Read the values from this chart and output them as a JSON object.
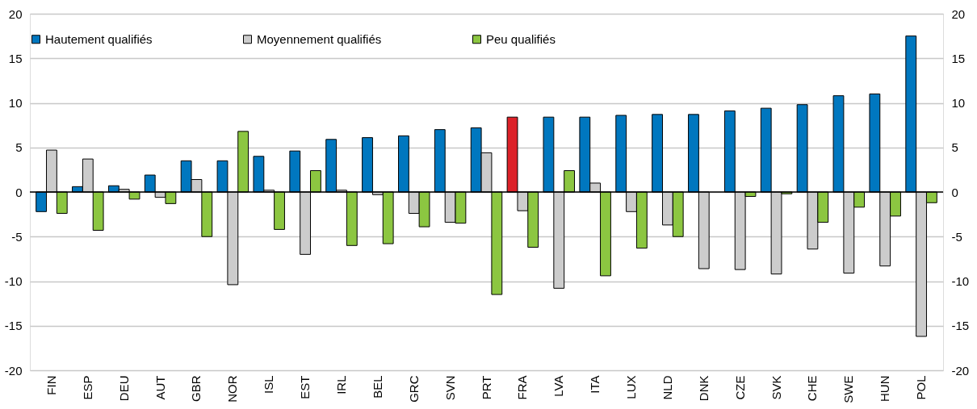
{
  "chart_data": {
    "type": "bar",
    "categories": [
      "FIN",
      "ESP",
      "DEU",
      "AUT",
      "GBR",
      "NOR",
      "ISL",
      "EST",
      "IRL",
      "BEL",
      "GRC",
      "SVN",
      "PRT",
      "FRA",
      "LVA",
      "ITA",
      "LUX",
      "NLD",
      "DNK",
      "CZE",
      "SVK",
      "CHE",
      "SWE",
      "HUN",
      "POL"
    ],
    "series": [
      {
        "name": "Hautement qualifiés",
        "color": "#0077bf",
        "colors": [
          "#0077bf",
          "#0077bf",
          "#0077bf",
          "#0077bf",
          "#0077bf",
          "#0077bf",
          "#0077bf",
          "#0077bf",
          "#0077bf",
          "#0077bf",
          "#0077bf",
          "#0077bf",
          "#0077bf",
          "#dc2128",
          "#0077bf",
          "#0077bf",
          "#0077bf",
          "#0077bf",
          "#0077bf",
          "#0077bf",
          "#0077bf",
          "#0077bf",
          "#0077bf",
          "#0077bf",
          "#0077bf"
        ],
        "values": [
          -2.2,
          0.6,
          0.7,
          1.9,
          3.5,
          3.5,
          4.0,
          4.6,
          5.9,
          6.1,
          6.3,
          7.0,
          7.2,
          8.4,
          8.4,
          8.4,
          8.6,
          8.7,
          8.7,
          9.1,
          9.4,
          9.8,
          10.8,
          11.0,
          17.5
        ]
      },
      {
        "name": "Moyennement qualifiés",
        "color": "#cccccc",
        "values": [
          4.7,
          3.7,
          0.3,
          -0.6,
          1.4,
          -10.4,
          0.2,
          -7.0,
          0.2,
          -0.3,
          -2.4,
          -3.4,
          4.4,
          -2.1,
          -10.8,
          1.0,
          -2.2,
          -3.7,
          -8.6,
          -8.7,
          -9.2,
          -6.4,
          -9.1,
          -8.3,
          -16.2
        ]
      },
      {
        "name": "Peu qualifiés",
        "color": "#8cc641",
        "values": [
          -2.4,
          -4.3,
          -0.8,
          -1.3,
          -5.0,
          6.8,
          -4.2,
          2.4,
          -6.0,
          -5.8,
          -3.9,
          -3.5,
          -11.5,
          -6.2,
          2.4,
          -9.4,
          -6.3,
          -5.0,
          null,
          -0.5,
          -0.2,
          -3.4,
          -1.7,
          -2.7,
          -1.2
        ]
      }
    ],
    "ylim": [
      -20,
      20
    ],
    "yticks": [
      -20,
      -15,
      -10,
      -5,
      0,
      5,
      10,
      15,
      20
    ],
    "y2lim": [
      -20,
      20
    ],
    "y2ticks": [
      -20,
      -15,
      -10,
      -5,
      0,
      5,
      10,
      15,
      20
    ],
    "grid": "y",
    "legend": "top"
  }
}
